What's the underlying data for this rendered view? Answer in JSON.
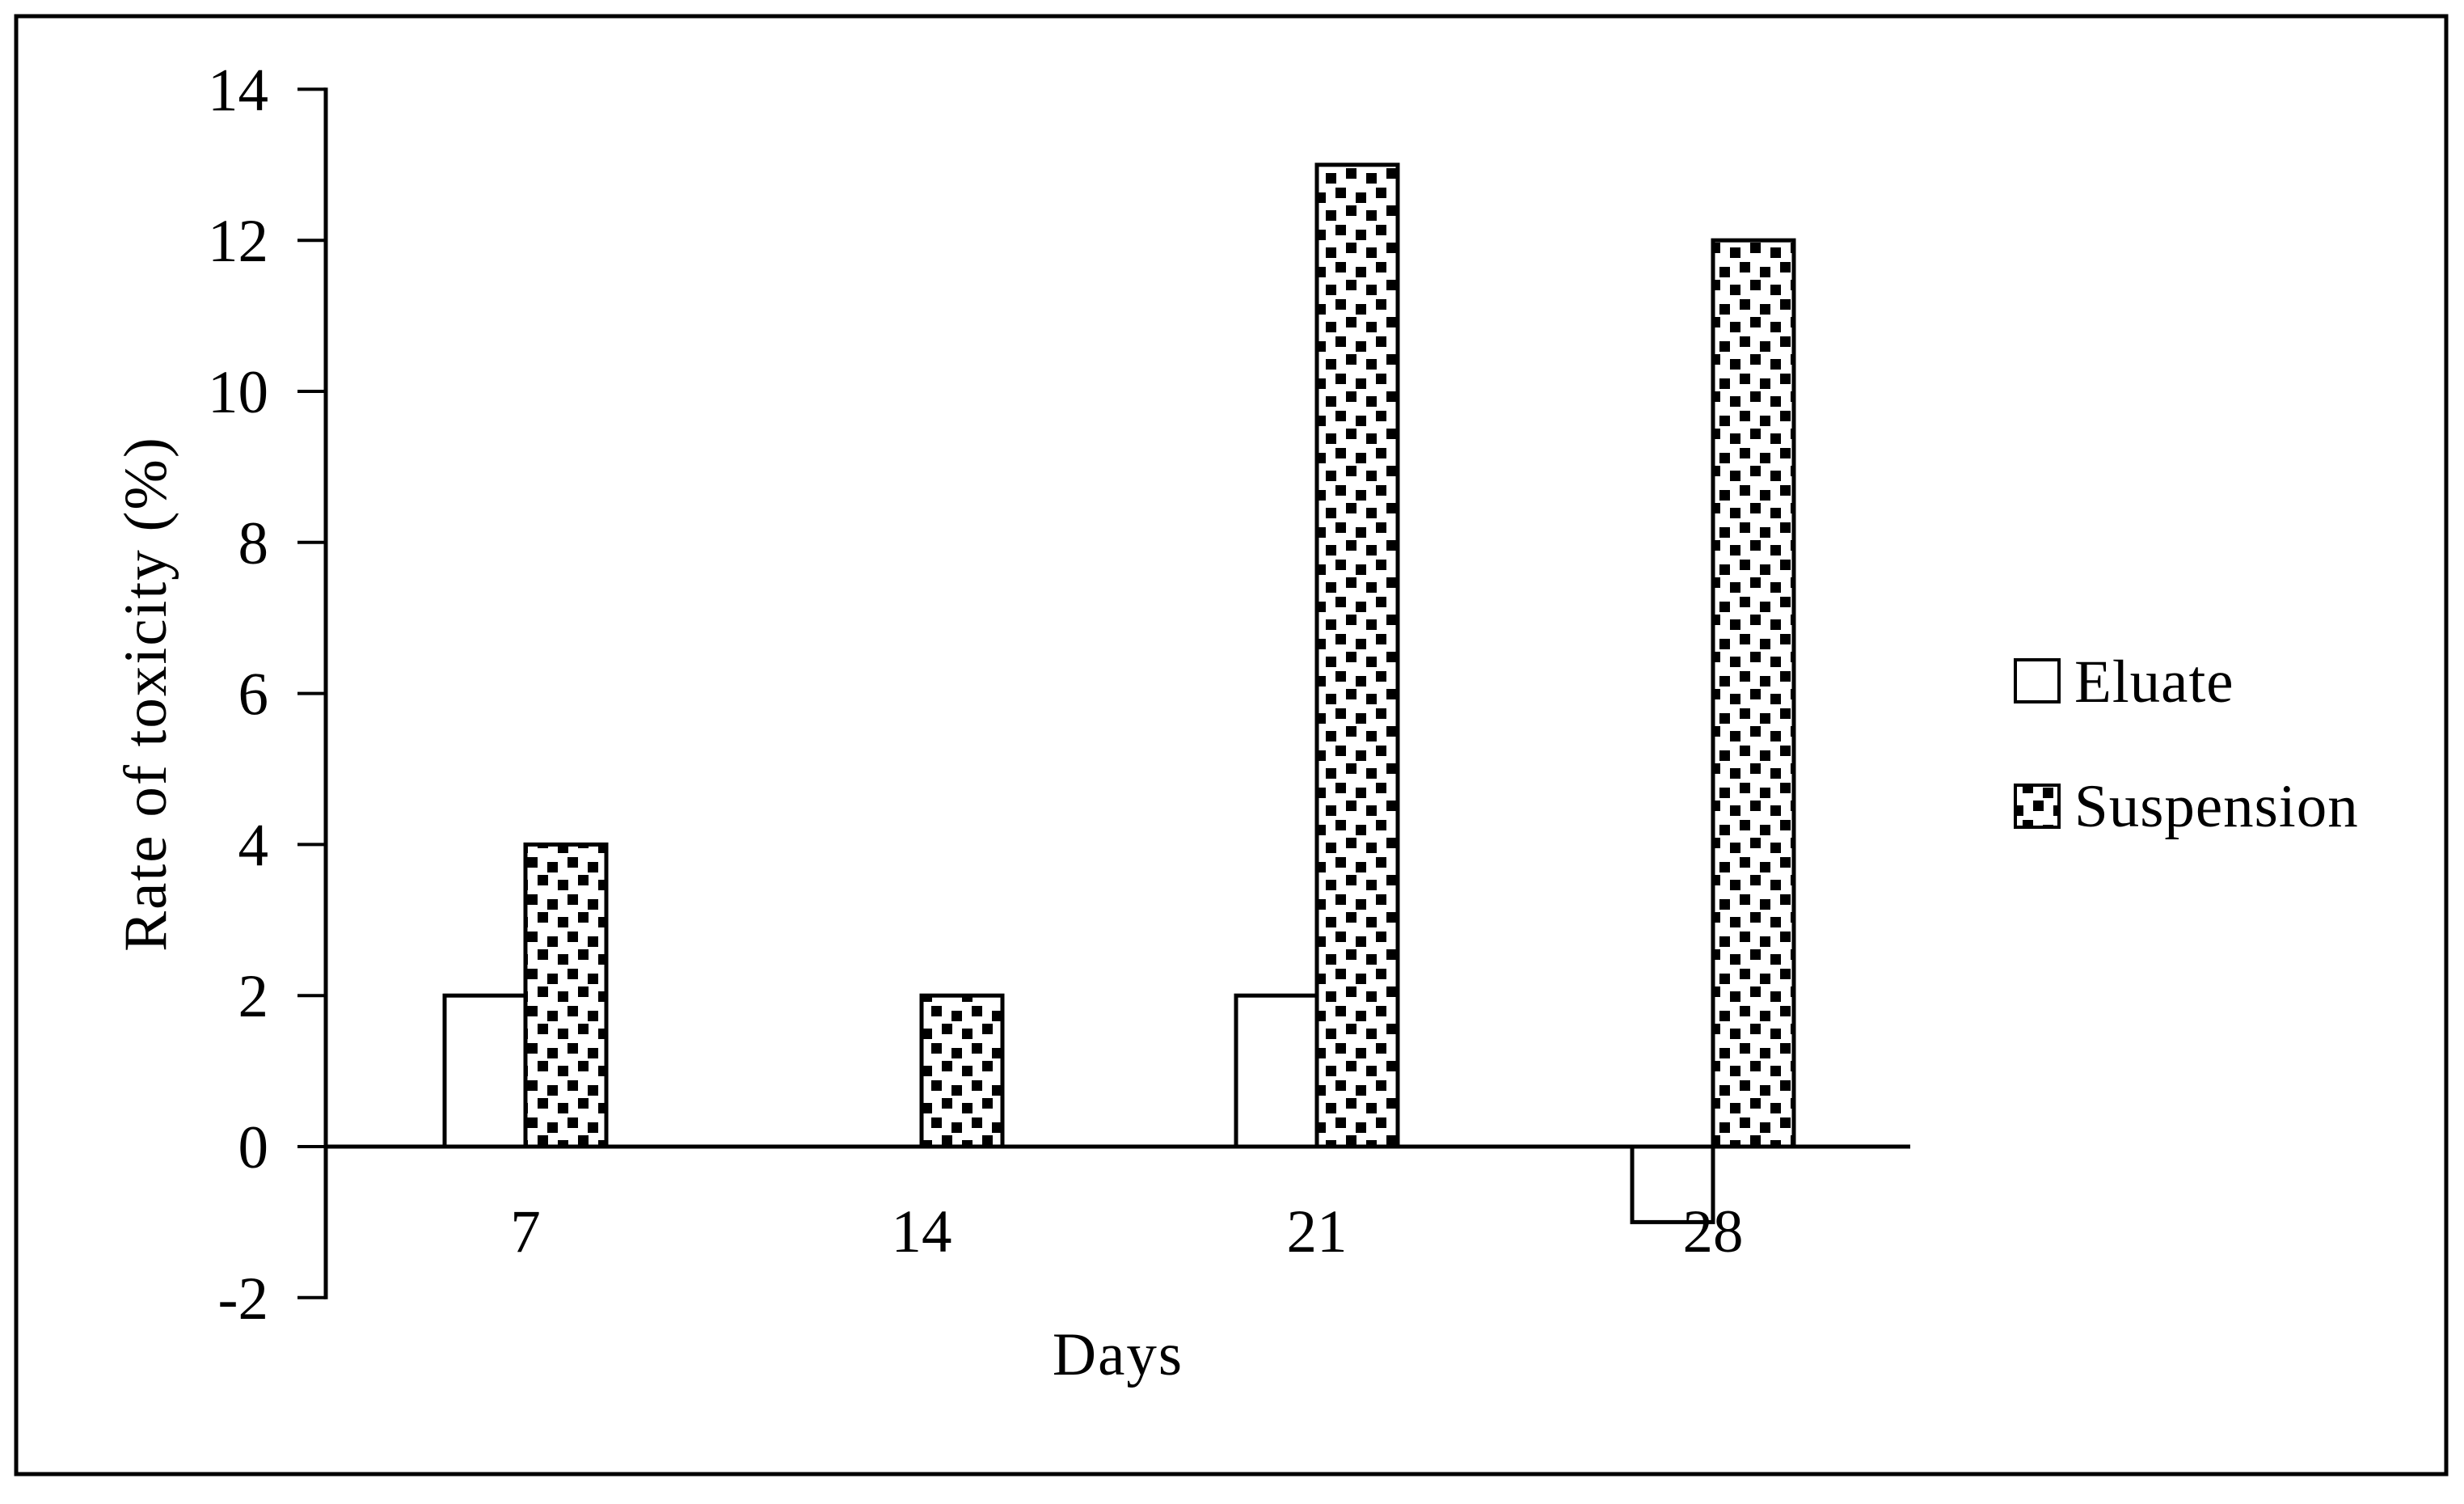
{
  "figure": {
    "background": "#ffffff",
    "border_color": "#000000",
    "ink_color": "#000000"
  },
  "chart_data": {
    "type": "bar",
    "title": "",
    "categories": [
      "7",
      "14",
      "21",
      "28"
    ],
    "series": [
      {
        "name": "Eluate",
        "swatch": "white-square",
        "fill": "white",
        "values": [
          2,
          0,
          2,
          -1
        ]
      },
      {
        "name": "Suspension",
        "swatch": "dotted-square",
        "fill": "dot-pattern",
        "values": [
          4,
          2,
          13,
          12
        ]
      }
    ],
    "xlabel": "Days",
    "ylabel": "Rate of toxicity (%)",
    "ylim": [
      -2,
      14
    ],
    "ytick_step": 2,
    "yticks": [
      -2,
      0,
      2,
      4,
      6,
      8,
      10,
      12,
      14
    ],
    "grid": false,
    "legend_position": "right-middle",
    "bar_outline_color": "#000000",
    "pattern_color": "#000000"
  }
}
